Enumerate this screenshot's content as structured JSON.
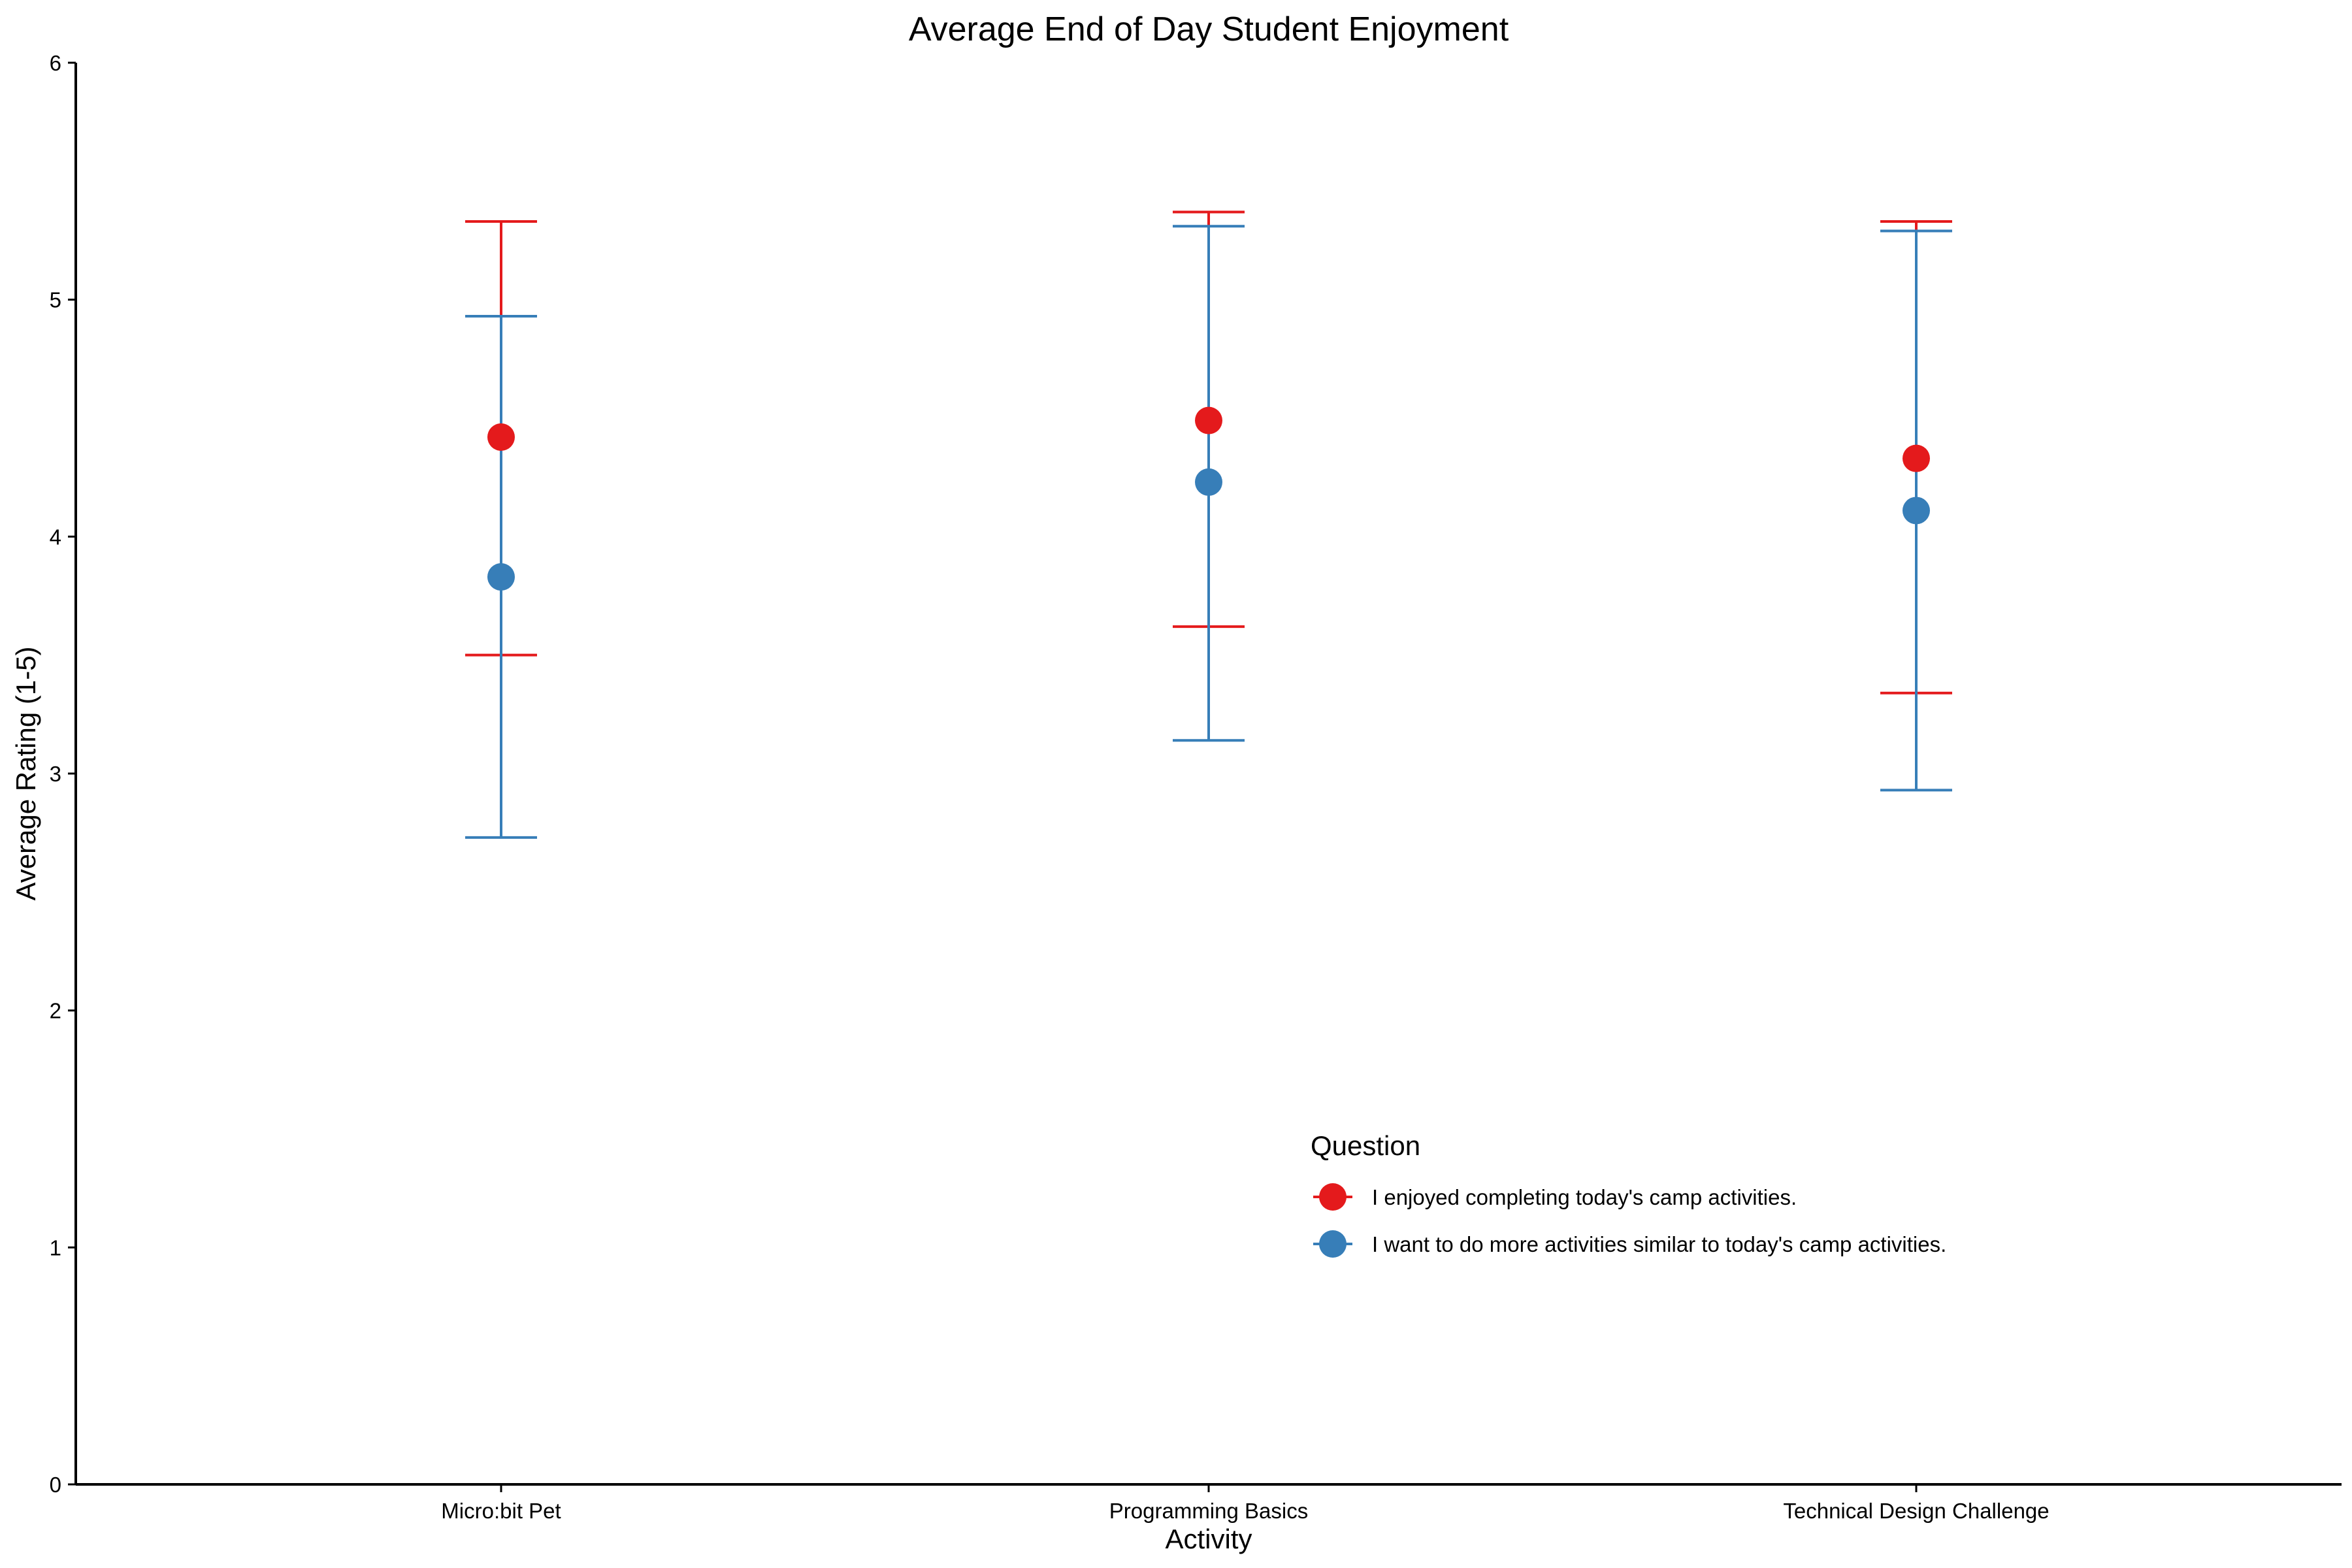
{
  "chart_data": {
    "type": "scatter",
    "title": "Average End of Day Student Enjoyment",
    "xlabel": "Activity",
    "ylabel": "Average Rating (1-5)",
    "categories": [
      "Micro:bit Pet",
      "Programming Basics",
      "Technical Design Challenge"
    ],
    "ylim": [
      0,
      6
    ],
    "yticks": [
      0,
      1,
      2,
      3,
      4,
      5,
      6
    ],
    "grid": false,
    "error_bars": true,
    "legend": {
      "title": "Question",
      "placement": "inside-bottom-right"
    },
    "series": [
      {
        "name": "I enjoyed completing today's camp activities.",
        "color": "#E41A1C",
        "values": [
          4.42,
          4.49,
          4.33
        ],
        "lower": [
          3.5,
          3.62,
          3.34
        ],
        "upper": [
          5.33,
          5.37,
          5.33
        ]
      },
      {
        "name": "I want to do more activities similar to today's camp activities.",
        "color": "#377EB8",
        "values": [
          3.83,
          4.23,
          4.11
        ],
        "lower": [
          2.73,
          3.14,
          2.93
        ],
        "upper": [
          4.93,
          5.31,
          5.29
        ]
      }
    ]
  }
}
